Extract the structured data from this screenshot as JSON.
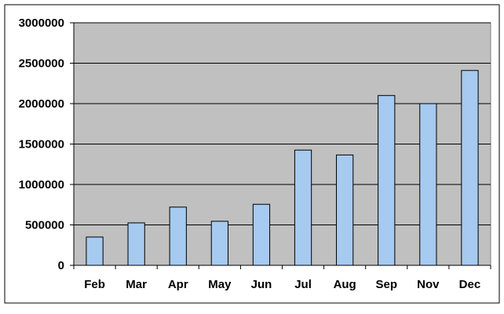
{
  "chart_data": {
    "type": "bar",
    "title": "",
    "xlabel": "",
    "ylabel": "",
    "categories": [
      "Feb",
      "Mar",
      "Apr",
      "May",
      "Jun",
      "Jul",
      "Aug",
      "Sep",
      "Nov",
      "Dec"
    ],
    "values": [
      350000,
      525000,
      720000,
      545000,
      755000,
      1425000,
      1365000,
      2100000,
      2000000,
      2410000
    ],
    "ylim": [
      0,
      3000000
    ],
    "yticks": [
      0,
      500000,
      1000000,
      1500000,
      2000000,
      2500000,
      3000000
    ],
    "ytick_labels": [
      "0",
      "500000",
      "1000000",
      "1500000",
      "2000000",
      "2500000",
      "3000000"
    ],
    "grid": true,
    "legend": "none",
    "colors": {
      "plot_background": "#c0c0c0",
      "bar_fill": "#a6caf0",
      "bar_stroke": "#000000",
      "gridline": "#000000",
      "frame": "#000000"
    }
  }
}
